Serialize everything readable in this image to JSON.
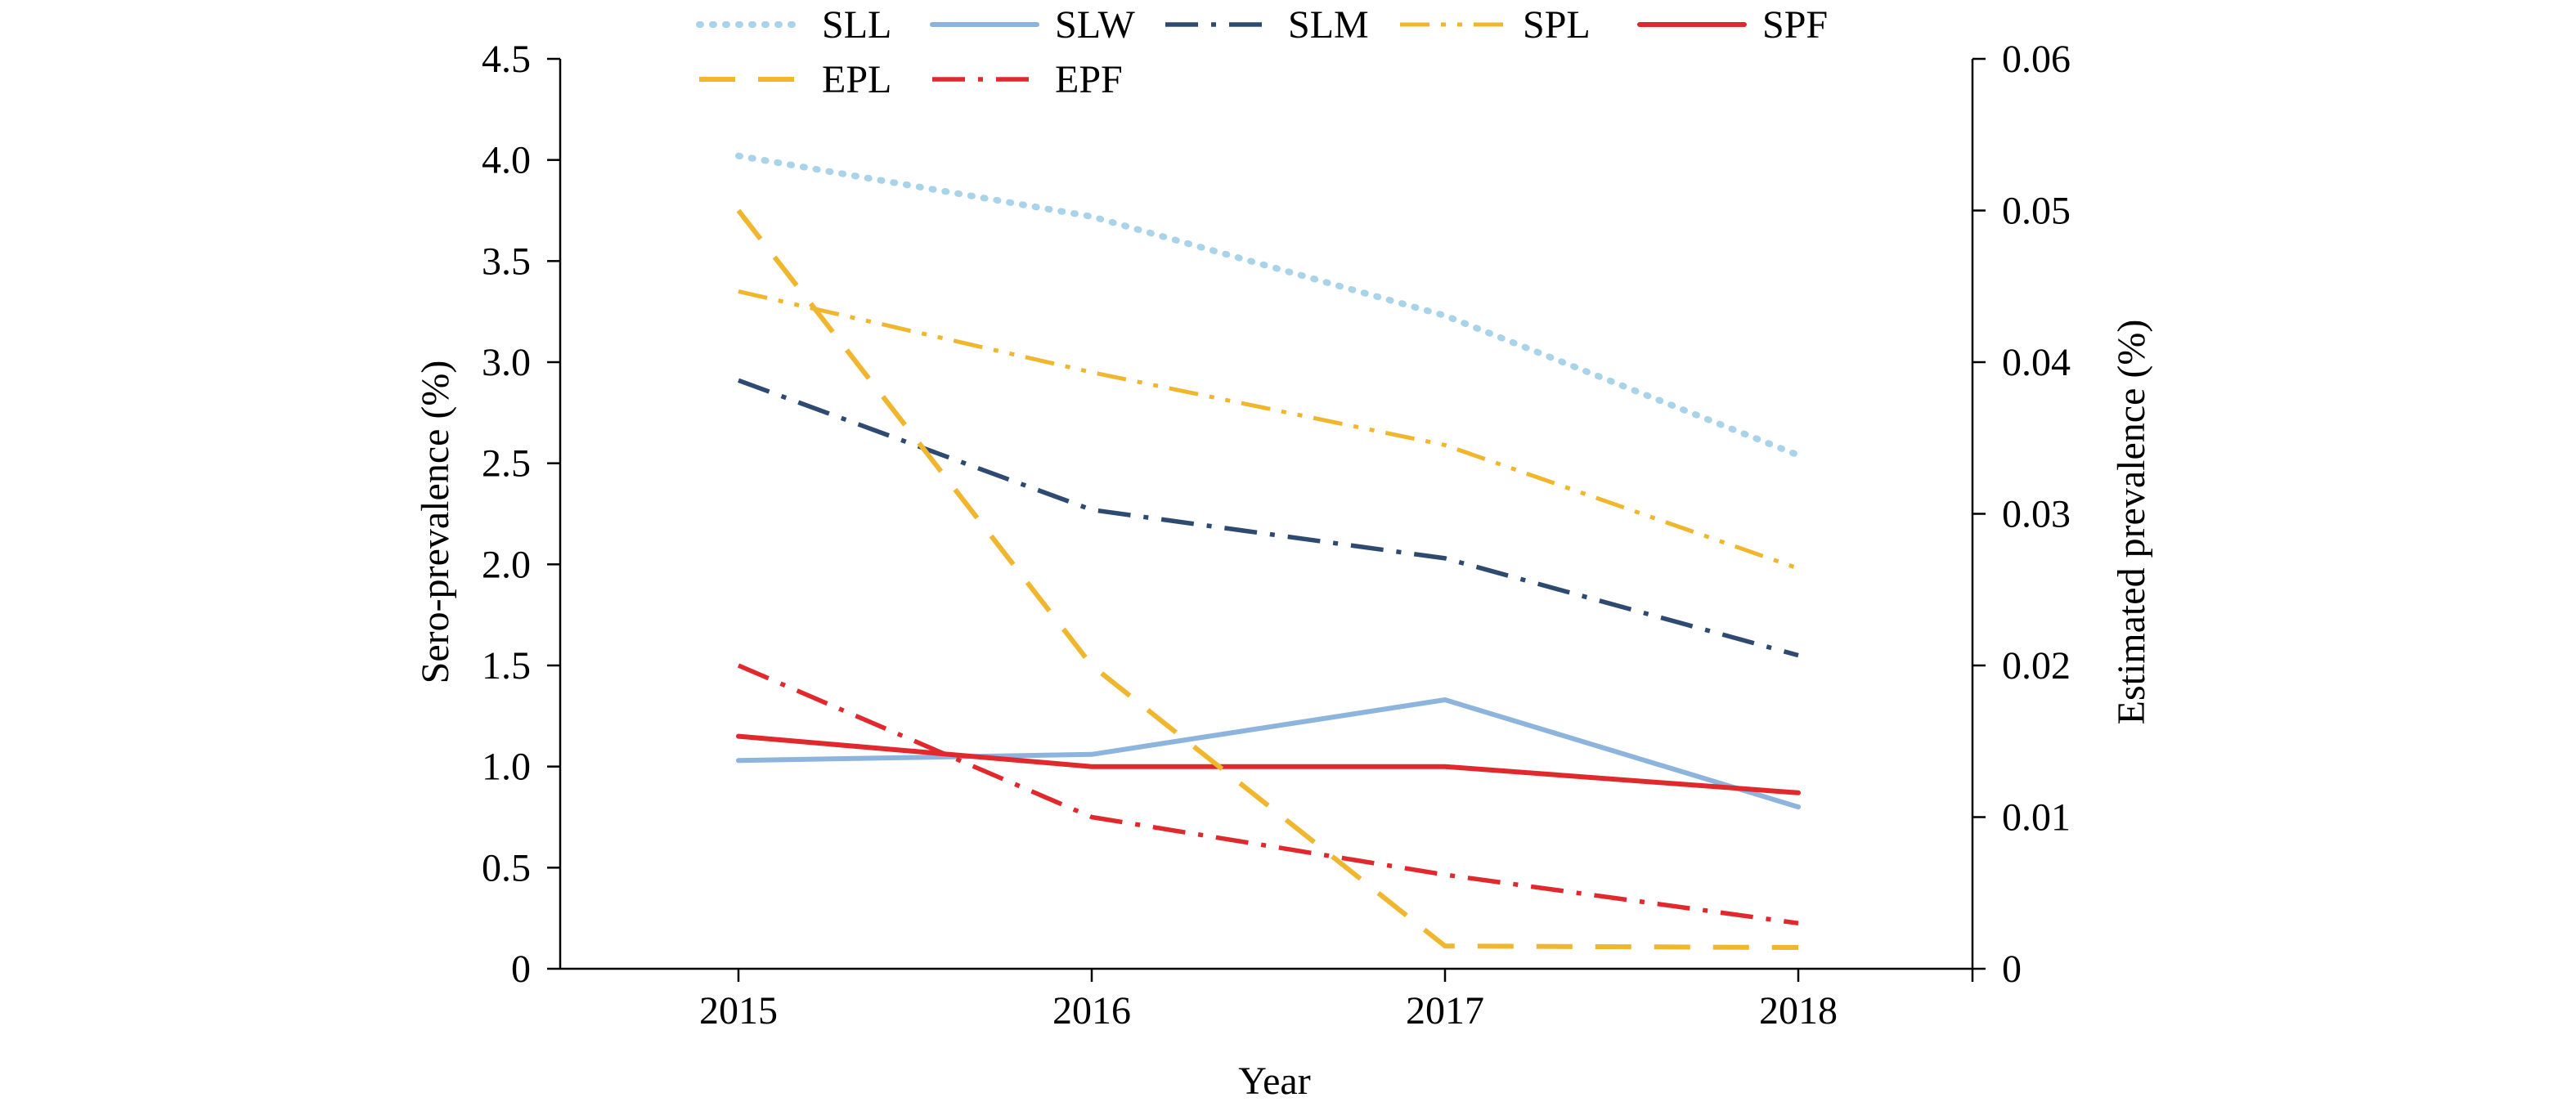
{
  "chart_data": {
    "type": "line",
    "title": "",
    "xlabel": "Year",
    "ylabel_left": "Sero-prevalence (%)",
    "ylabel_right": "Estimated prevalence (%)",
    "categories": [
      "2015",
      "2016",
      "2017",
      "2018"
    ],
    "y_left": {
      "min": 0,
      "max": 4.5,
      "ticks": [
        "0",
        "0.5",
        "1.0",
        "1.5",
        "2.0",
        "2.5",
        "3.0",
        "3.5",
        "4.0",
        "4.5"
      ]
    },
    "y_right": {
      "min": 0,
      "max": 0.06,
      "ticks": [
        "0",
        "0.01",
        "0.02",
        "0.03",
        "0.04",
        "0.05",
        "0.06"
      ]
    },
    "grid": false,
    "legend_position": "top",
    "series": [
      {
        "name": "SLL",
        "axis": "left",
        "values": [
          4.02,
          3.72,
          3.23,
          2.54
        ],
        "color": "#A9D3E8",
        "style": "dotted"
      },
      {
        "name": "SLW",
        "axis": "left",
        "values": [
          1.03,
          1.06,
          1.33,
          0.8
        ],
        "color": "#8DB4DC",
        "style": "solid"
      },
      {
        "name": "SLM",
        "axis": "left",
        "values": [
          2.91,
          2.27,
          2.03,
          1.55
        ],
        "color": "#2E4A70",
        "style": "dashdot"
      },
      {
        "name": "SPL",
        "axis": "left",
        "values": [
          3.35,
          2.95,
          2.59,
          1.98
        ],
        "color": "#F0B62D",
        "style": "dashdotdot"
      },
      {
        "name": "SPF",
        "axis": "left",
        "values": [
          1.15,
          1.0,
          1.0,
          0.87
        ],
        "color": "#E1282D",
        "style": "solid"
      },
      {
        "name": "EPL",
        "axis": "right",
        "values": [
          0.05,
          0.02,
          0.0015,
          0.0014
        ],
        "color": "#F0B62D",
        "style": "longdash"
      },
      {
        "name": "EPF",
        "axis": "right",
        "values": [
          0.02,
          0.01,
          0.0062,
          0.003
        ],
        "color": "#E1282D",
        "style": "dashdot"
      }
    ]
  }
}
